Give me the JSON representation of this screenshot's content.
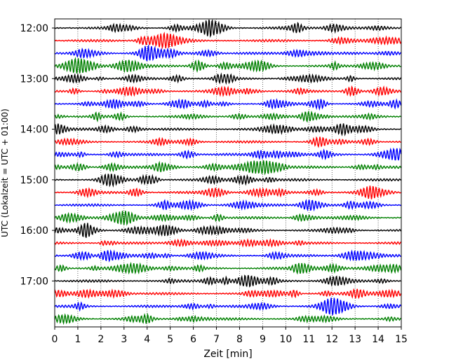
{
  "chart_data": {
    "type": "line",
    "title": "",
    "xlabel": "Zeit  [min]",
    "ylabel": "UTC (Lokalzeit = UTC + 01:00)",
    "xlim": [
      0,
      15
    ],
    "x_ticks": [
      0,
      1,
      2,
      3,
      4,
      5,
      6,
      7,
      8,
      9,
      10,
      11,
      12,
      13,
      14,
      15
    ],
    "x_tick_labels": [
      "0",
      "1",
      "2",
      "3",
      "4",
      "5",
      "6",
      "7",
      "8",
      "9",
      "10",
      "11",
      "12",
      "13",
      "14",
      "15"
    ],
    "y_tick_labels": [
      "12:00",
      "13:00",
      "14:00",
      "15:00",
      "16:00",
      "17:00"
    ],
    "y_tick_rows": [
      0,
      4,
      8,
      12,
      16,
      20
    ],
    "grid": {
      "x": true,
      "y": false,
      "style": "dotted"
    },
    "row_interval_minutes": 15,
    "series": [
      {
        "row": 0,
        "start": "12:00",
        "color": "#000000"
      },
      {
        "row": 1,
        "start": "12:15",
        "color": "#ff0000"
      },
      {
        "row": 2,
        "start": "12:30",
        "color": "#0000ff"
      },
      {
        "row": 3,
        "start": "12:45",
        "color": "#008000"
      },
      {
        "row": 4,
        "start": "13:00",
        "color": "#000000"
      },
      {
        "row": 5,
        "start": "13:15",
        "color": "#ff0000"
      },
      {
        "row": 6,
        "start": "13:30",
        "color": "#0000ff"
      },
      {
        "row": 7,
        "start": "13:45",
        "color": "#008000"
      },
      {
        "row": 8,
        "start": "14:00",
        "color": "#000000"
      },
      {
        "row": 9,
        "start": "14:15",
        "color": "#ff0000"
      },
      {
        "row": 10,
        "start": "14:30",
        "color": "#0000ff"
      },
      {
        "row": 11,
        "start": "14:45",
        "color": "#008000"
      },
      {
        "row": 12,
        "start": "15:00",
        "color": "#000000"
      },
      {
        "row": 13,
        "start": "15:15",
        "color": "#ff0000"
      },
      {
        "row": 14,
        "start": "15:30",
        "color": "#0000ff"
      },
      {
        "row": 15,
        "start": "15:45",
        "color": "#008000"
      },
      {
        "row": 16,
        "start": "16:00",
        "color": "#000000"
      },
      {
        "row": 17,
        "start": "16:15",
        "color": "#ff0000"
      },
      {
        "row": 18,
        "start": "16:30",
        "color": "#0000ff"
      },
      {
        "row": 19,
        "start": "16:45",
        "color": "#008000"
      },
      {
        "row": 20,
        "start": "17:00",
        "color": "#000000"
      },
      {
        "row": 21,
        "start": "17:15",
        "color": "#ff0000"
      },
      {
        "row": 22,
        "start": "17:30",
        "color": "#0000ff"
      },
      {
        "row": 23,
        "start": "17:45",
        "color": "#008000"
      }
    ]
  }
}
